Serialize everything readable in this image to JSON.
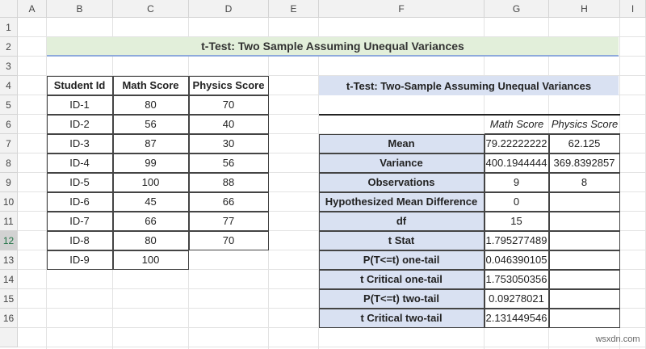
{
  "columns": [
    "A",
    "B",
    "C",
    "D",
    "E",
    "F",
    "G",
    "H",
    "I"
  ],
  "row_numbers": [
    1,
    2,
    3,
    4,
    5,
    6,
    7,
    8,
    9,
    10,
    11,
    12,
    13,
    14,
    15,
    16
  ],
  "title": "t-Test: Two Sample Assuming Unequal Variances",
  "student_table": {
    "headers": [
      "Student Id",
      "Math  Score",
      "Physics  Score"
    ],
    "rows": [
      [
        "ID-1",
        80,
        70
      ],
      [
        "ID-2",
        56,
        40
      ],
      [
        "ID-3",
        87,
        30
      ],
      [
        "ID-4",
        99,
        56
      ],
      [
        "ID-5",
        100,
        88
      ],
      [
        "ID-6",
        45,
        66
      ],
      [
        "ID-7",
        66,
        77
      ],
      [
        "ID-8",
        80,
        70
      ],
      [
        "ID-9",
        100
      ]
    ]
  },
  "ttest": {
    "title": "t-Test: Two-Sample Assuming Unequal Variances",
    "headers": [
      "Math Score",
      "Physics Score"
    ],
    "rows": [
      {
        "label": "Mean",
        "values": [
          79.22222222,
          62.125
        ]
      },
      {
        "label": "Variance",
        "values": [
          400.1944444,
          369.8392857
        ]
      },
      {
        "label": "Observations",
        "values": [
          9,
          8
        ]
      },
      {
        "label": "Hypothesized Mean Difference",
        "values": [
          0
        ]
      },
      {
        "label": "df",
        "values": [
          15
        ]
      },
      {
        "label": "t Stat",
        "values": [
          1.795277489
        ]
      },
      {
        "label": "P(T<=t) one-tail",
        "values": [
          0.046390105
        ]
      },
      {
        "label": "t Critical one-tail",
        "values": [
          1.753050356
        ]
      },
      {
        "label": "P(T<=t) two-tail",
        "values": [
          0.09278021
        ]
      },
      {
        "label": "t Critical two-tail",
        "values": [
          2.131449546
        ]
      }
    ]
  },
  "watermark": "wsxdn.com"
}
